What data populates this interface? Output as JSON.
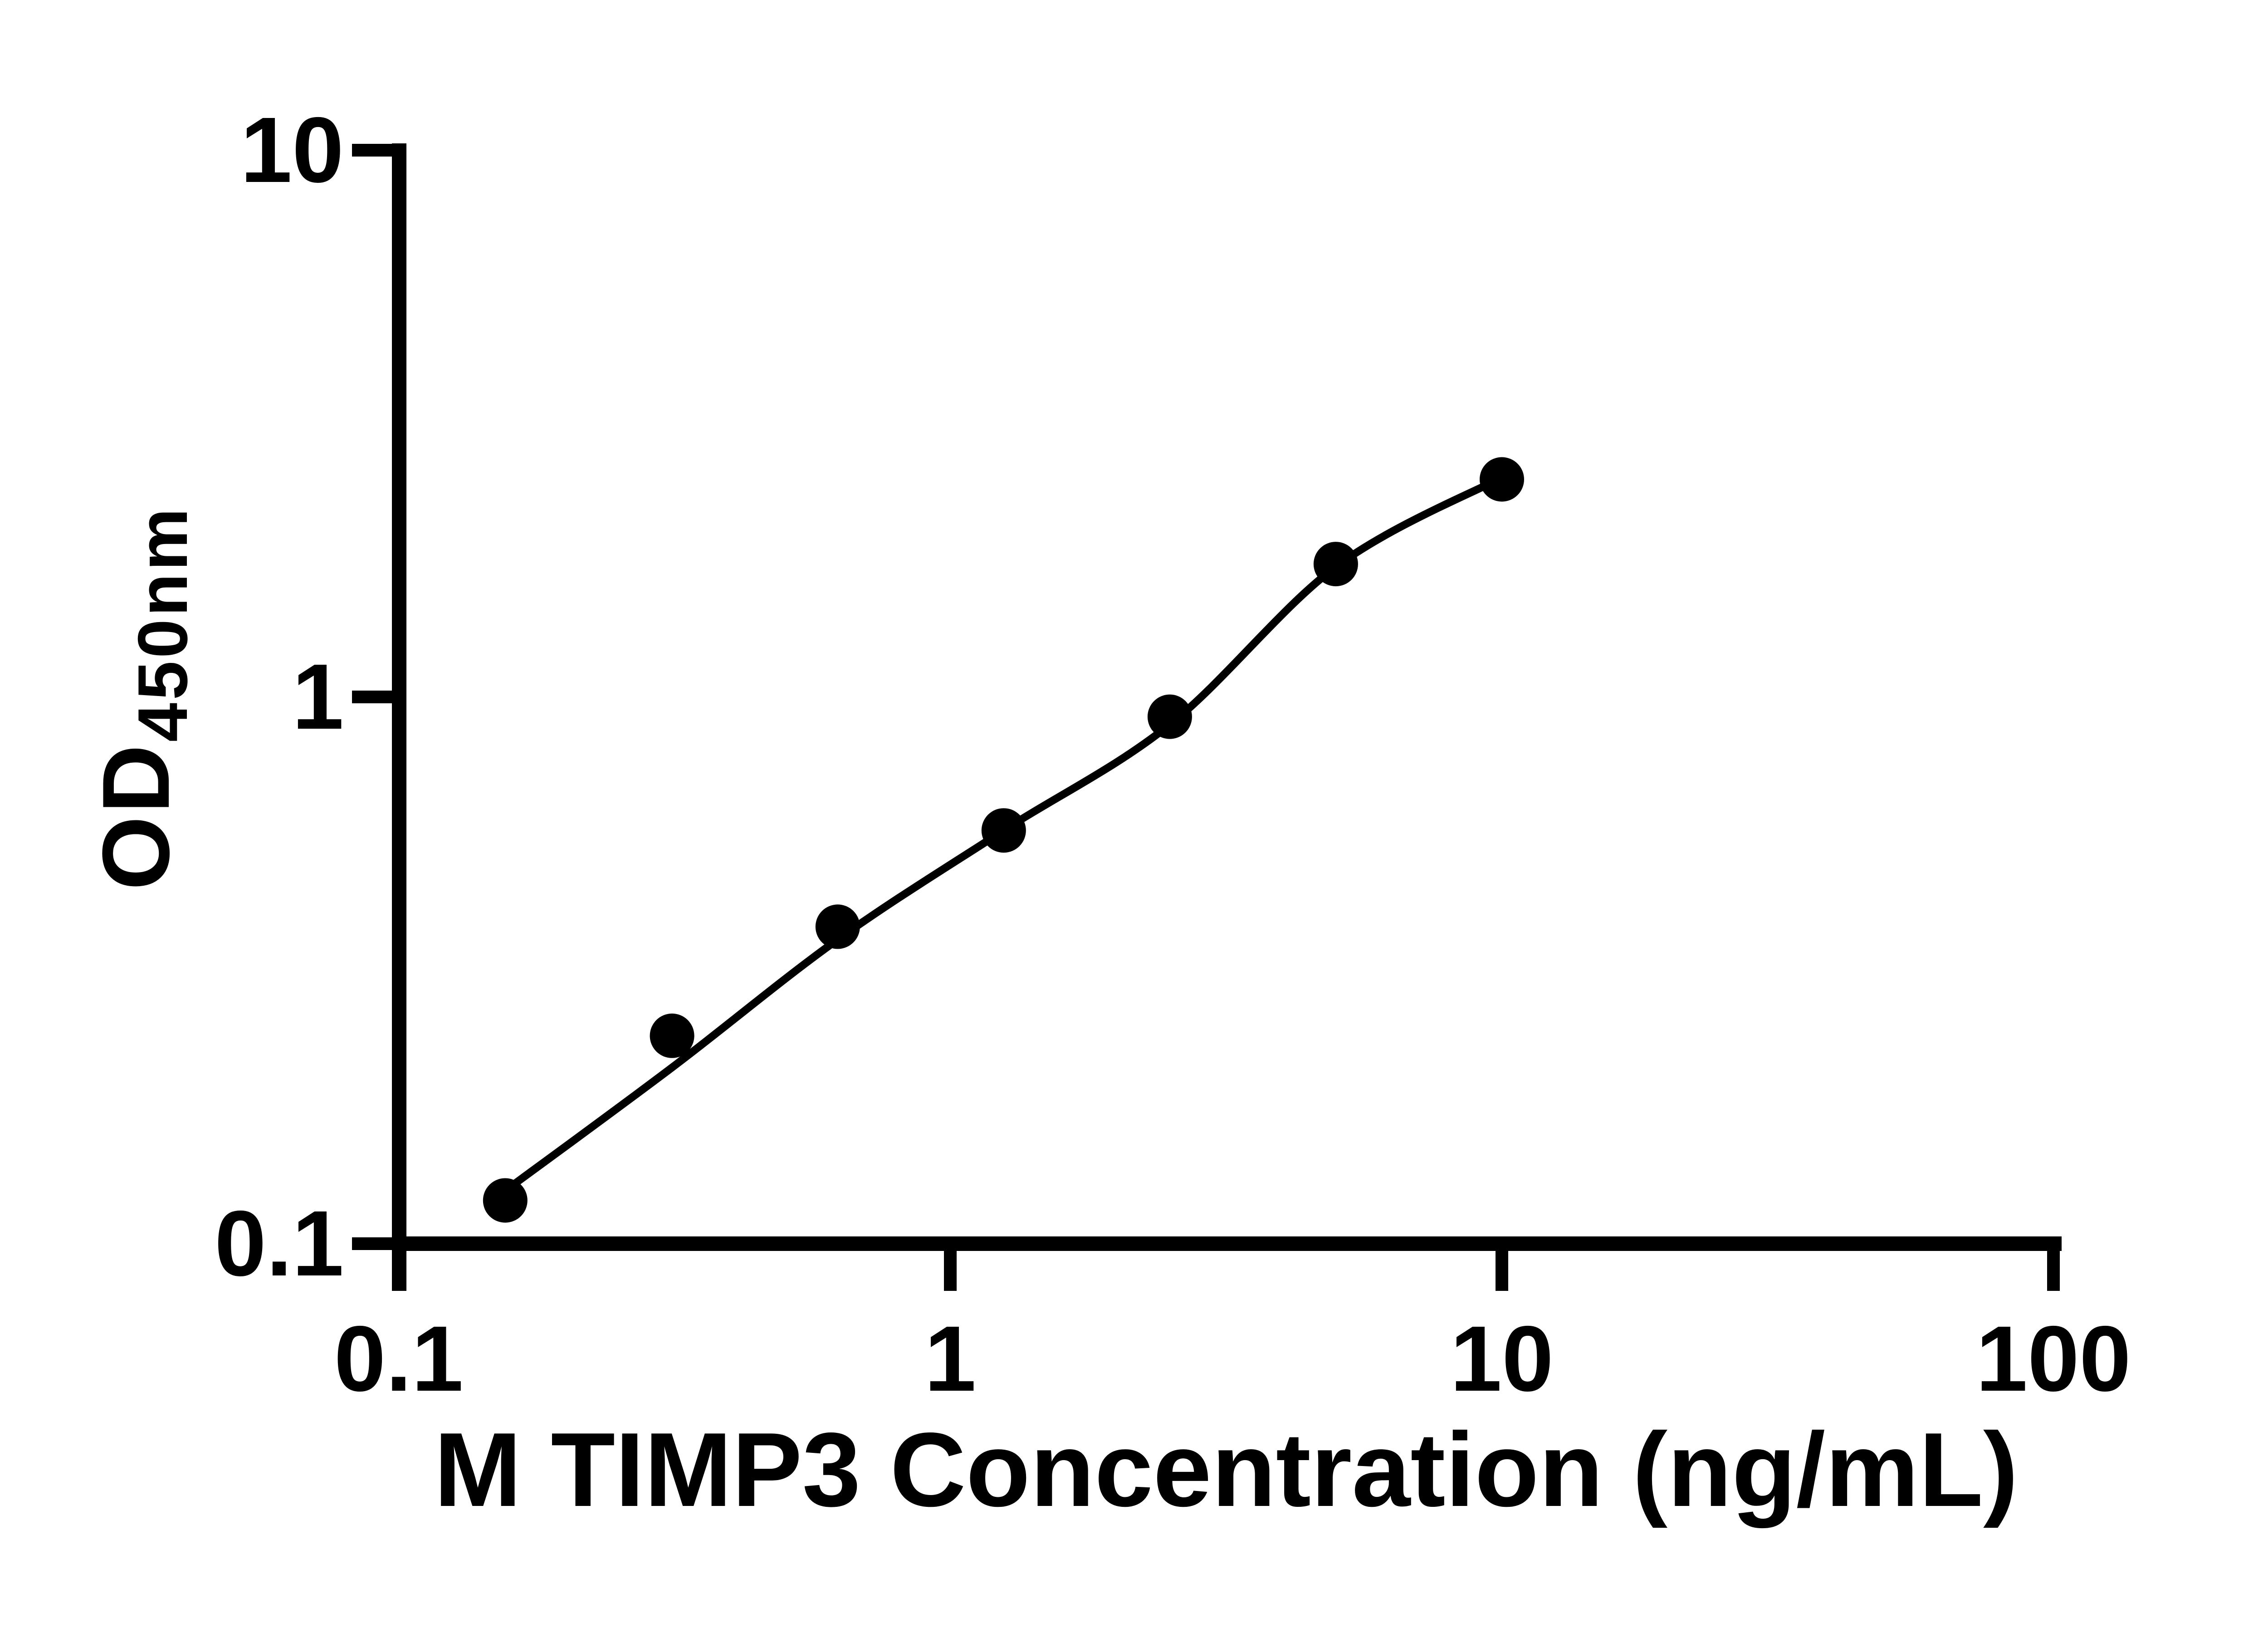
{
  "figure": {
    "background_color": "#ffffff",
    "foreground_color": "#000000"
  },
  "chart_data": {
    "type": "scatter",
    "title": "",
    "xlabel": "M TIMP3 Concentration (ng/mL)",
    "ylabel": "OD",
    "ylabel_subscript": "450nm",
    "x_scale": "log10",
    "y_scale": "log10",
    "xlim": [
      0.1,
      100
    ],
    "ylim": [
      0.1,
      10
    ],
    "grid": false,
    "legend": false,
    "marker_color": "#000000",
    "line_color": "#000000",
    "x_ticks": [
      {
        "value": 0.1,
        "label": "0.1"
      },
      {
        "value": 1,
        "label": "1"
      },
      {
        "value": 10,
        "label": "10"
      },
      {
        "value": 100,
        "label": "100"
      }
    ],
    "y_ticks": [
      {
        "value": 10,
        "label": "10"
      },
      {
        "value": 1,
        "label": "1"
      },
      {
        "value": 0.1,
        "label": "0.1"
      }
    ],
    "series": [
      {
        "x": [
          0.156,
          0.313,
          0.625,
          1.25,
          2.5,
          5,
          10
        ],
        "y": [
          0.12,
          0.24,
          0.38,
          0.57,
          0.92,
          1.75,
          2.5
        ]
      }
    ],
    "fit_curve": {
      "x": [
        0.156,
        0.313,
        0.625,
        1.25,
        2.5,
        5,
        10
      ],
      "y": [
        0.125,
        0.21,
        0.36,
        0.57,
        0.89,
        1.73,
        2.52
      ]
    }
  }
}
